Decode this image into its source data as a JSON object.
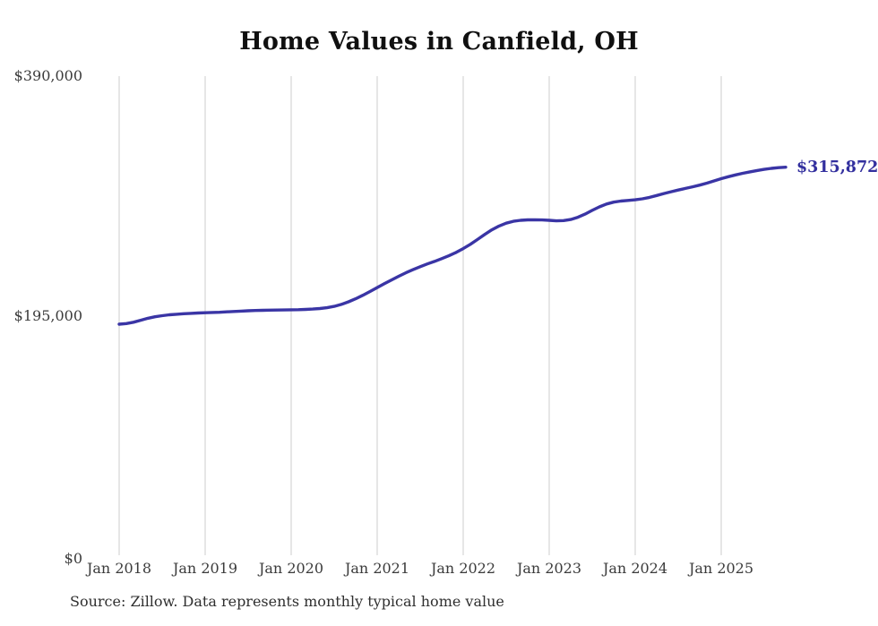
{
  "title": "Home Values in Canfield, OH",
  "source_note": "Source: Zillow. Data represents monthly typical home value",
  "end_label": "$315,872",
  "colors": {
    "line": "#3a35a5",
    "end_label": "#322f9e",
    "grid": "#cccccc",
    "axis_text": "#3b3b3b",
    "title_text": "#101010",
    "background": "#ffffff"
  },
  "y_axis": {
    "ticks": [
      {
        "label": "$390,000",
        "value": 390000
      },
      {
        "label": "$195,000",
        "value": 195000
      },
      {
        "label": "$0",
        "value": 0
      }
    ]
  },
  "x_axis": {
    "ticks": [
      {
        "label": "Jan 2018",
        "month_index": 0
      },
      {
        "label": "Jan 2019",
        "month_index": 12
      },
      {
        "label": "Jan 2020",
        "month_index": 24
      },
      {
        "label": "Jan 2021",
        "month_index": 36
      },
      {
        "label": "Jan 2022",
        "month_index": 48
      },
      {
        "label": "Jan 2023",
        "month_index": 60
      },
      {
        "label": "Jan 2024",
        "month_index": 72
      },
      {
        "label": "Jan 2025",
        "month_index": 84
      }
    ]
  },
  "chart_data": {
    "type": "line",
    "title": "Home Values in Canfield, OH",
    "xlabel": "",
    "ylabel": "",
    "ylim": [
      0,
      390000
    ],
    "grid": "vertical-only",
    "legend": "none",
    "x_start_month": "2018-01",
    "x_end_month": "2025-10",
    "x_interval": "monthly",
    "x_tick_labels": [
      "Jan 2018",
      "Jan 2019",
      "Jan 2020",
      "Jan 2021",
      "Jan 2022",
      "Jan 2023",
      "Jan 2024",
      "Jan 2025"
    ],
    "y_tick_labels": [
      "$0",
      "$195,000",
      "$390,000"
    ],
    "end_point_annotation": "$315,872",
    "series": [
      {
        "name": "Typical home value",
        "values": [
          188100,
          188600,
          189700,
          191300,
          192900,
          194100,
          195000,
          195700,
          196200,
          196600,
          196900,
          197200,
          197400,
          197600,
          197800,
          198100,
          198400,
          198700,
          199000,
          199200,
          199400,
          199500,
          199600,
          199700,
          199800,
          199900,
          200100,
          200400,
          200800,
          201500,
          202600,
          204200,
          206300,
          208800,
          211600,
          214700,
          217900,
          221000,
          224100,
          227100,
          229900,
          232500,
          234900,
          237100,
          239200,
          241400,
          243800,
          246500,
          249600,
          253100,
          257000,
          261100,
          264900,
          268000,
          270300,
          271800,
          272600,
          273000,
          273100,
          272900,
          272600,
          272200,
          272400,
          273300,
          275100,
          277700,
          280700,
          283600,
          285900,
          287400,
          288300,
          288800,
          289300,
          290100,
          291300,
          292800,
          294400,
          295900,
          297300,
          298600,
          299900,
          301300,
          302900,
          304700,
          306500,
          308100,
          309600,
          310900,
          312100,
          313200,
          314100,
          314900,
          315500,
          315872
        ]
      }
    ]
  }
}
